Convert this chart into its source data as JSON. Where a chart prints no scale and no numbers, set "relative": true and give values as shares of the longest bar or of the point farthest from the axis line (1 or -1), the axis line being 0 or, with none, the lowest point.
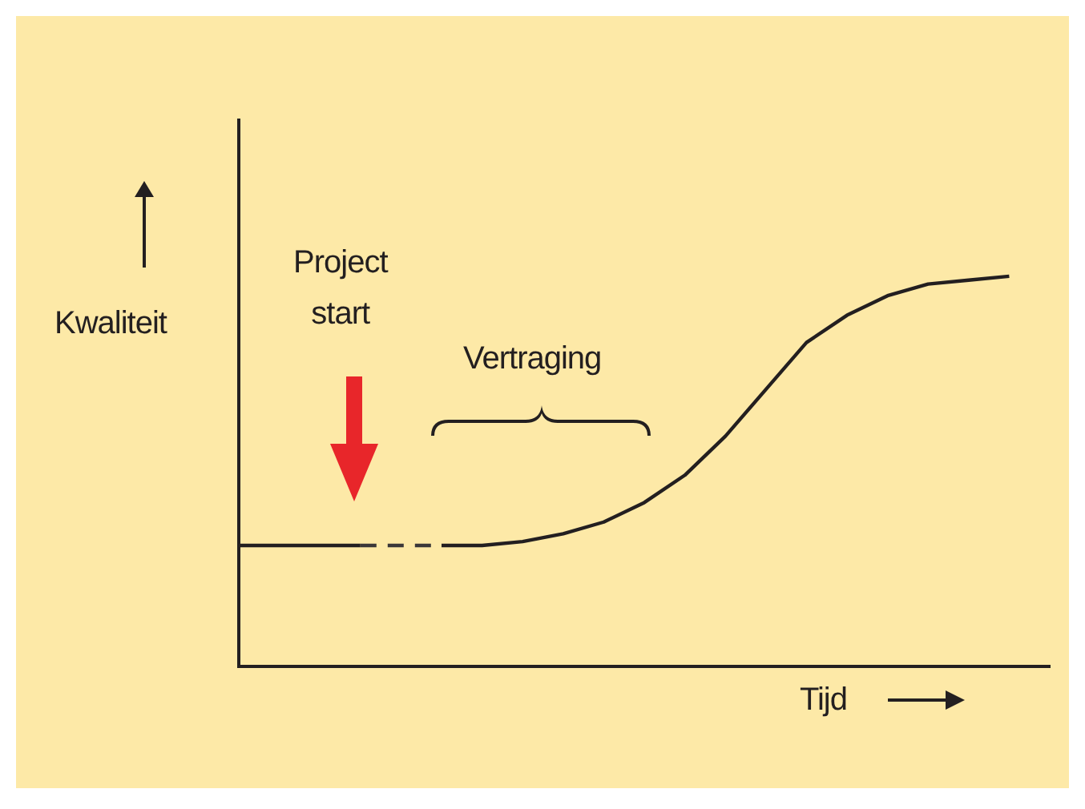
{
  "chart_data": {
    "type": "line",
    "xlabel": "Tijd",
    "ylabel": "Kwaliteit",
    "annotations": [
      "Project\nstart",
      "Vertraging"
    ],
    "relative": true,
    "tick_labels": false,
    "legend": false,
    "marker": "none",
    "categories": [
      null,
      null,
      null,
      null,
      null,
      null,
      null,
      null,
      null,
      null,
      null,
      null,
      null,
      null,
      null,
      null,
      null,
      null,
      null,
      null,
      null
    ],
    "series": [
      {
        "color": "#231f20",
        "line_style": "solid",
        "values": [
          0.31,
          0.31,
          0.31,
          0.31,
          null,
          0.31,
          0.31,
          0.32,
          0.34,
          0.37,
          0.42,
          0.49,
          0.59,
          0.71,
          0.83,
          0.9,
          0.95,
          0.98,
          0.99,
          1,
          null
        ]
      },
      {
        "color": "#3b3738",
        "line_style": "dashed",
        "values": [
          null,
          null,
          null,
          0.31,
          0.31,
          0.31,
          null,
          null,
          null,
          null,
          null,
          null,
          null,
          null,
          null,
          null,
          null,
          null,
          null,
          null,
          null
        ]
      }
    ]
  }
}
